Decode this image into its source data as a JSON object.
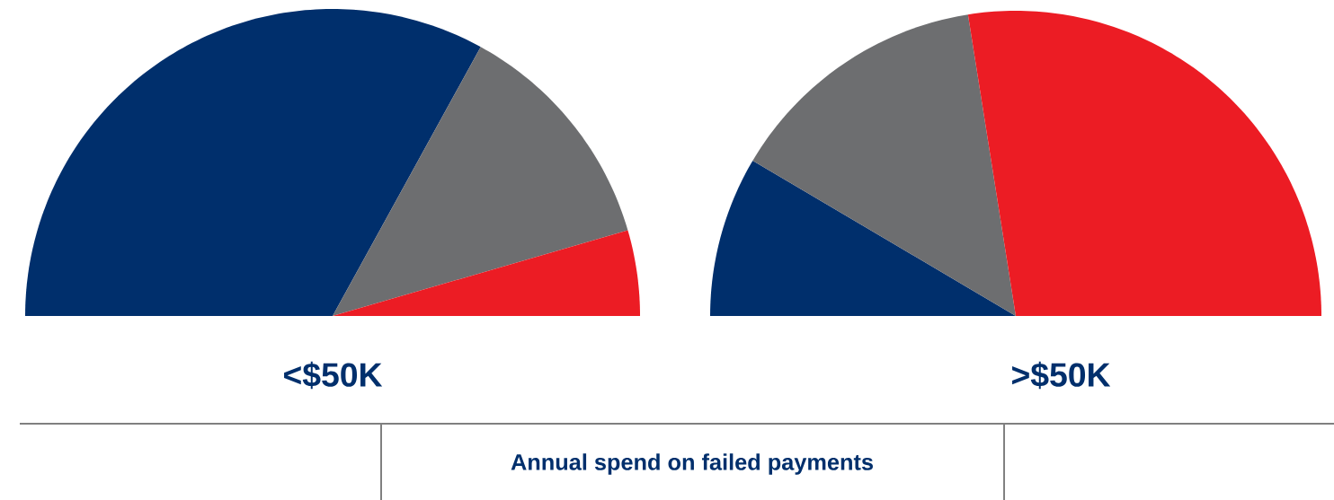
{
  "chart_data": [
    {
      "type": "pie",
      "title": "<$50K",
      "categories": [
        null,
        null,
        null
      ],
      "values": [
        66,
        25,
        9
      ],
      "colors": [
        "#002f6c",
        "#6d6e70",
        "#ec1c24"
      ]
    },
    {
      "type": "pie",
      "title": ">$50K",
      "categories": [
        null,
        null,
        null
      ],
      "values": [
        17,
        28,
        55
      ],
      "colors": [
        "#002f6c",
        "#6d6e70",
        "#ec1c24"
      ]
    },
    {
      "type": "other",
      "title": "Annual spend on failed payments"
    }
  ]
}
